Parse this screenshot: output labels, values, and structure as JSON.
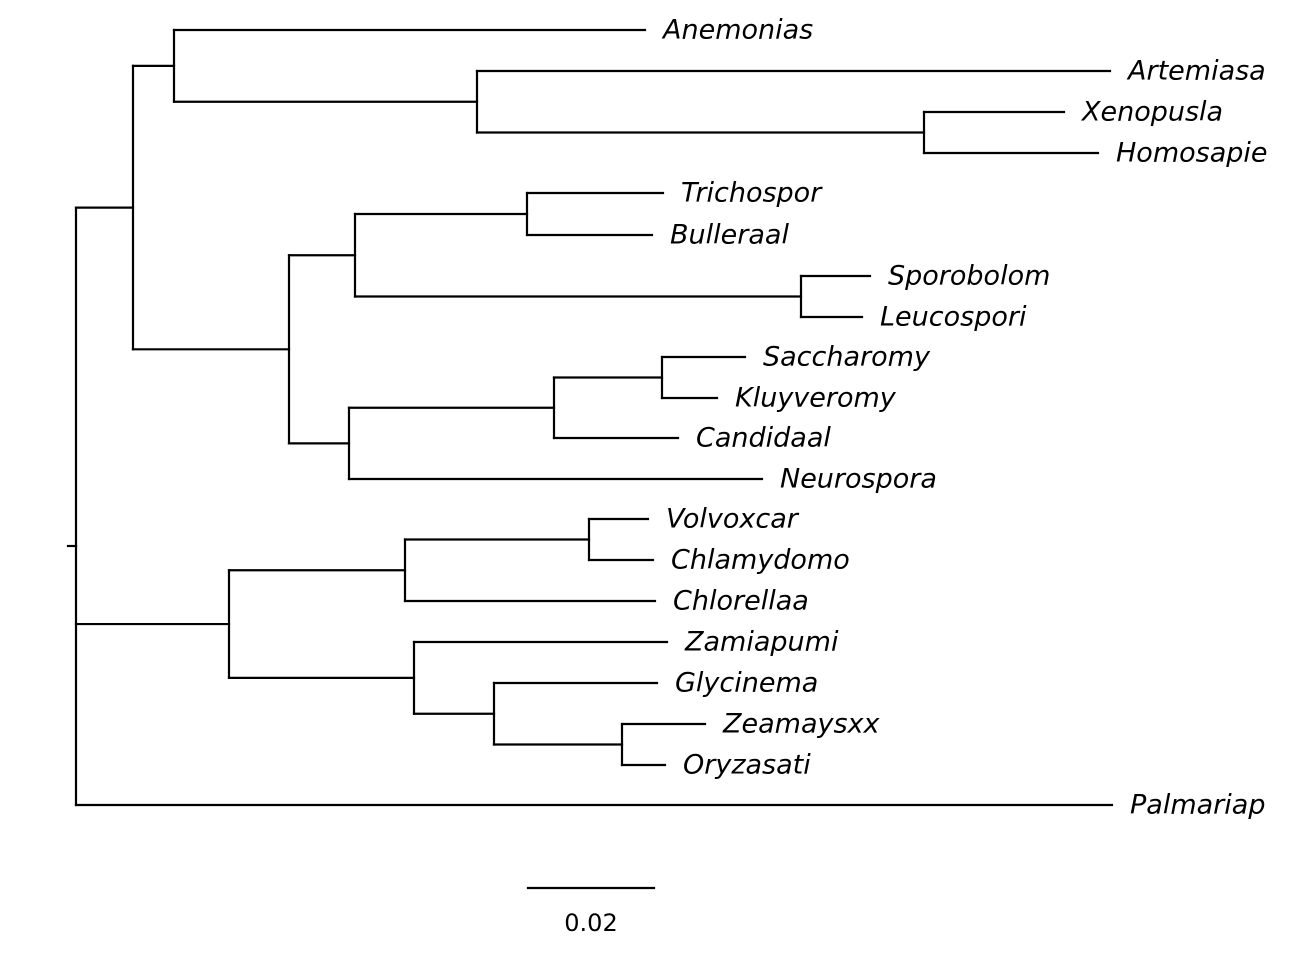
{
  "tree": {
    "root": {
      "children": [
        {
          "children": [
            {
              "children": [
                {
                  "name": "Anemonias"
                },
                {
                  "children": [
                    {
                      "name": "Artemiasa"
                    },
                    {
                      "children": [
                        {
                          "name": "Xenopusla"
                        },
                        {
                          "name": "Homosapie"
                        }
                      ]
                    }
                  ]
                }
              ]
            },
            {
              "children": [
                {
                  "children": [
                    {
                      "children": [
                        {
                          "name": "Trichospor"
                        },
                        {
                          "name": "Bulleraal"
                        }
                      ]
                    },
                    {
                      "children": [
                        {
                          "name": "Sporobolom"
                        },
                        {
                          "name": "Leucospori"
                        }
                      ]
                    }
                  ]
                },
                {
                  "children": [
                    {
                      "children": [
                        {
                          "children": [
                            {
                              "name": "Saccharomy"
                            },
                            {
                              "name": "Kluyveromy"
                            }
                          ]
                        },
                        {
                          "name": "Candidaal"
                        }
                      ]
                    },
                    {
                      "name": "Neurospora"
                    }
                  ]
                }
              ]
            }
          ]
        },
        {
          "children": [
            {
              "children": [
                {
                  "children": [
                    {
                      "name": "Volvoxcar"
                    },
                    {
                      "name": "Chlamydomo"
                    }
                  ]
                },
                {
                  "name": "Chlorellaa"
                }
              ]
            },
            {
              "children": [
                {
                  "name": "Zamiapumi"
                },
                {
                  "children": [
                    {
                      "name": "Glycinema"
                    },
                    {
                      "children": [
                        {
                          "name": "Zeamaysxx"
                        },
                        {
                          "name": "Oryzasati"
                        }
                      ]
                    }
                  ]
                }
              ]
            }
          ]
        },
        {
          "name": "Palmariap"
        }
      ]
    }
  },
  "scale_bar": {
    "value": 0.02,
    "label": "0.02"
  }
}
